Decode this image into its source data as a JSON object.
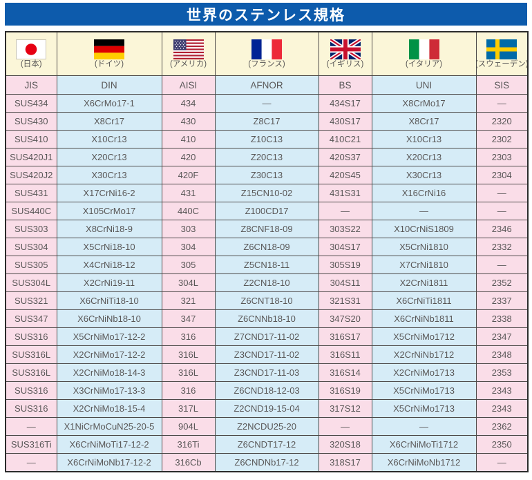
{
  "title": "世界のステンレス規格",
  "colors": {
    "title_bg": "#0d5bac",
    "flag_row_bg": "#fbf6d8",
    "pink_column": "#fadde8",
    "blue_column": "#d6ecf7",
    "text": "#595757"
  },
  "countries": [
    {
      "id": "japan",
      "icon": "japan-flag-icon",
      "label": "(日本)"
    },
    {
      "id": "germany",
      "icon": "germany-flag-icon",
      "label": "(ドイツ)"
    },
    {
      "id": "usa",
      "icon": "usa-flag-icon",
      "label": "(アメリカ)"
    },
    {
      "id": "france",
      "icon": "france-flag-icon",
      "label": "(フランス)"
    },
    {
      "id": "uk",
      "icon": "uk-flag-icon",
      "label": "(イギリス)"
    },
    {
      "id": "italy",
      "icon": "italy-flag-icon",
      "label": "(イタリア)"
    },
    {
      "id": "sweden",
      "icon": "sweden-flag-icon",
      "label": "(スウェーデン)"
    }
  ],
  "columns": [
    "JIS",
    "DIN",
    "AISI",
    "AFNOR",
    "BS",
    "UNI",
    "SIS"
  ],
  "rows": [
    [
      "SUS434",
      "X6CrMo17-1",
      "434",
      "―",
      "434S17",
      "X8CrMo17",
      "―"
    ],
    [
      "SUS430",
      "X8Cr17",
      "430",
      "Z8C17",
      "430S17",
      "X8Cr17",
      "2320"
    ],
    [
      "SUS410",
      "X10Cr13",
      "410",
      "Z10C13",
      "410C21",
      "X10Cr13",
      "2302"
    ],
    [
      "SUS420J1",
      "X20Cr13",
      "420",
      "Z20C13",
      "420S37",
      "X20Cr13",
      "2303"
    ],
    [
      "SUS420J2",
      "X30Cr13",
      "420F",
      "Z30C13",
      "420S45",
      "X30Cr13",
      "2304"
    ],
    [
      "SUS431",
      "X17CrNi16-2",
      "431",
      "Z15CN10-02",
      "431S31",
      "X16CrNi16",
      "―"
    ],
    [
      "SUS440C",
      "X105CrMo17",
      "440C",
      "Z100CD17",
      "―",
      "―",
      "―"
    ],
    [
      "SUS303",
      "X8CrNi18-9",
      "303",
      "Z8CNF18-09",
      "303S22",
      "X10CrNiS1809",
      "2346"
    ],
    [
      "SUS304",
      "X5CrNi18-10",
      "304",
      "Z6CN18-09",
      "304S17",
      "X5CrNi1810",
      "2332"
    ],
    [
      "SUS305",
      "X4CrNi18-12",
      "305",
      "Z5CN18-11",
      "305S19",
      "X7CrNi1810",
      "―"
    ],
    [
      "SUS304L",
      "X2CrNi19-11",
      "304L",
      "Z2CN18-10",
      "304S11",
      "X2CrNi1811",
      "2352"
    ],
    [
      "SUS321",
      "X6CrNiTi18-10",
      "321",
      "Z6CNT18-10",
      "321S31",
      "X6CrNiTi1811",
      "2337"
    ],
    [
      "SUS347",
      "X6CrNiNb18-10",
      "347",
      "Z6CNNb18-10",
      "347S20",
      "X6CrNiNb1811",
      "2338"
    ],
    [
      "SUS316",
      "X5CrNiMo17-12-2",
      "316",
      "Z7CND17-11-02",
      "316S17",
      "X5CrNiMo1712",
      "2347"
    ],
    [
      "SUS316L",
      "X2CrNiMo17-12-2",
      "316L",
      "Z3CND17-11-02",
      "316S11",
      "X2CrNiNb1712",
      "2348"
    ],
    [
      "SUS316L",
      "X2CrNiMo18-14-3",
      "316L",
      "Z3CND17-11-03",
      "316S14",
      "X2CrNiMo1713",
      "2353"
    ],
    [
      "SUS316",
      "X3CrNiMo17-13-3",
      "316",
      "Z6CND18-12-03",
      "316S19",
      "X5CrNiMo1713",
      "2343"
    ],
    [
      "SUS316",
      "X2CrNiMo18-15-4",
      "317L",
      "Z2CND19-15-04",
      "317S12",
      "X5CrNiMo1713",
      "2343"
    ],
    [
      "―",
      "X1NiCrMoCuN25-20-5",
      "904L",
      "Z2NCDU25-20",
      "―",
      "―",
      "2362"
    ],
    [
      "SUS316Ti",
      "X6CrNiMoTi17-12-2",
      "316Ti",
      "Z6CNDT17-12",
      "320S18",
      "X6CrNiMoTi1712",
      "2350"
    ],
    [
      "―",
      "X6CrNiMoNb17-12-2",
      "316Cb",
      "Z6CNDNb17-12",
      "318S17",
      "X6CrNiMoNb1712",
      "―"
    ]
  ]
}
